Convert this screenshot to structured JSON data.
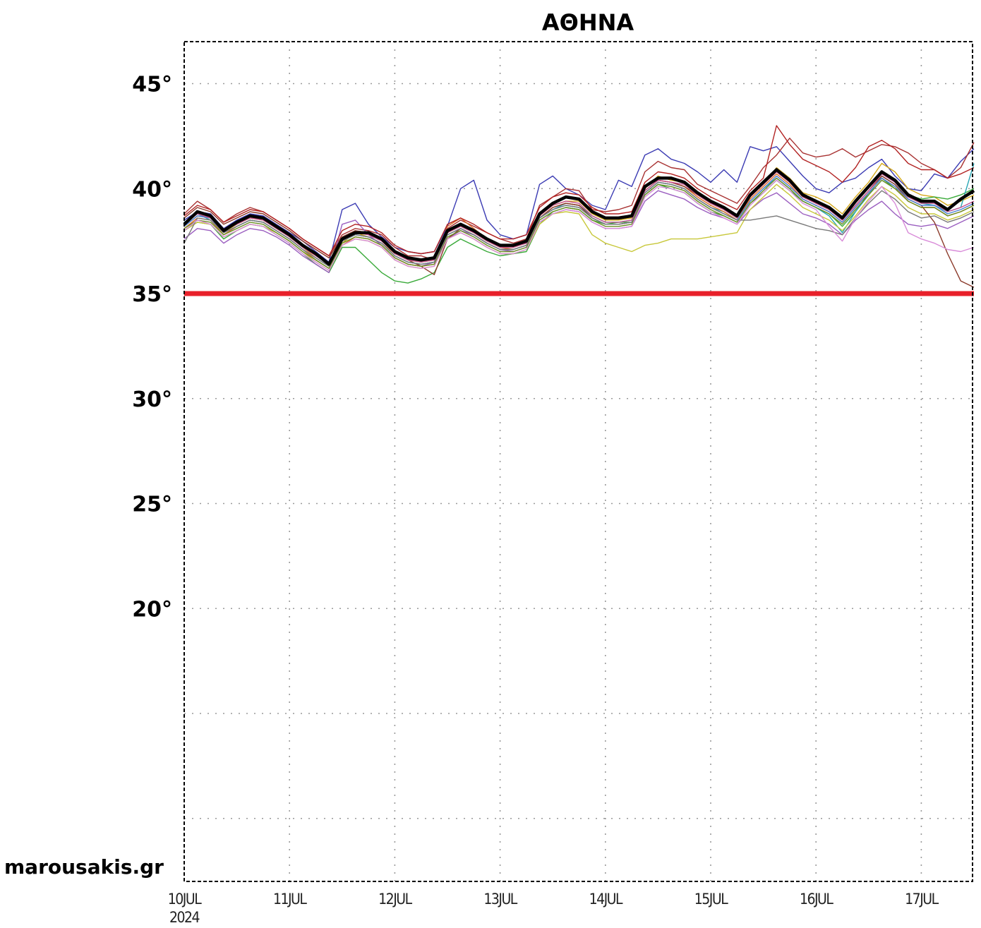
{
  "watermark": "marousakis.gr",
  "chart_data": {
    "type": "line",
    "title": "ΑΘΗΝΑ",
    "xlabel": "",
    "ylabel": "",
    "x_ticks": [
      {
        "label": "10JUL",
        "year": "2024"
      },
      {
        "label": "11JUL"
      },
      {
        "label": "12JUL"
      },
      {
        "label": "13JUL"
      },
      {
        "label": "14JUL"
      },
      {
        "label": "15JUL"
      },
      {
        "label": "16JUL"
      },
      {
        "label": "17JUL"
      }
    ],
    "y_ticks": [
      {
        "label": "45°",
        "value": 45
      },
      {
        "label": "40°",
        "value": 40
      },
      {
        "label": "35°",
        "value": 35
      },
      {
        "label": "30°",
        "value": 30
      },
      {
        "label": "25°",
        "value": 25
      },
      {
        "label": "20°",
        "value": 20
      }
    ],
    "xlim": [
      0,
      7.5
    ],
    "ylim": [
      7,
      47
    ],
    "grid": true,
    "threshold": {
      "value": 35,
      "color": "#e8202a"
    },
    "mean_color": "#000000",
    "x": [
      0,
      0.125,
      0.25,
      0.375,
      0.5,
      0.625,
      0.75,
      0.875,
      1.0,
      1.125,
      1.25,
      1.375,
      1.5,
      1.625,
      1.75,
      1.875,
      2.0,
      2.125,
      2.25,
      2.375,
      2.5,
      2.625,
      2.75,
      2.875,
      3.0,
      3.125,
      3.25,
      3.375,
      3.5,
      3.625,
      3.75,
      3.875,
      4.0,
      4.125,
      4.25,
      4.375,
      4.5,
      4.625,
      4.75,
      4.875,
      5.0,
      5.125,
      5.25,
      5.375,
      5.5,
      5.625,
      5.75,
      5.875,
      6.0,
      6.125,
      6.25,
      6.375,
      6.5,
      6.625,
      6.75,
      6.875,
      7.0,
      7.125,
      7.25,
      7.375,
      7.5
    ],
    "series": [
      {
        "role": "mean",
        "values": [
          38.3,
          38.9,
          38.7,
          38.0,
          38.4,
          38.7,
          38.6,
          38.2,
          37.8,
          37.3,
          36.9,
          36.4,
          37.6,
          37.9,
          37.9,
          37.6,
          37.0,
          36.7,
          36.6,
          36.7,
          38.0,
          38.3,
          38.0,
          37.6,
          37.3,
          37.3,
          37.5,
          38.8,
          39.3,
          39.6,
          39.5,
          38.9,
          38.6,
          38.6,
          38.7,
          40.1,
          40.5,
          40.5,
          40.3,
          39.8,
          39.4,
          39.1,
          38.7,
          39.7,
          40.3,
          40.9,
          40.4,
          39.7,
          39.4,
          39.1,
          38.6,
          39.4,
          40.1,
          40.8,
          40.4,
          39.7,
          39.4,
          39.4,
          39.0,
          39.5,
          39.9
        ]
      },
      {
        "color": "#3b3bb3",
        "values": [
          38.5,
          38.9,
          38.8,
          38.1,
          38.5,
          38.8,
          38.7,
          38.3,
          37.9,
          37.5,
          37.0,
          36.5,
          39.0,
          39.3,
          38.3,
          37.7,
          37.2,
          37.0,
          36.9,
          37.0,
          38.2,
          40.0,
          40.4,
          38.5,
          37.8,
          37.6,
          37.8,
          40.2,
          40.6,
          40.0,
          39.7,
          39.2,
          39.0,
          40.4,
          40.1,
          41.6,
          41.9,
          41.4,
          41.2,
          40.8,
          40.3,
          40.9,
          40.3,
          42.0,
          41.8,
          42.0,
          41.3,
          40.6,
          40.0,
          39.8,
          40.3,
          40.5,
          41.0,
          41.4,
          40.6,
          40.0,
          39.9,
          40.7,
          40.5,
          41.3,
          41.9
        ]
      },
      {
        "color": "#a83232",
        "values": [
          38.8,
          39.4,
          39.0,
          38.4,
          38.8,
          39.1,
          38.9,
          38.5,
          38.1,
          37.6,
          37.2,
          36.8,
          37.8,
          38.1,
          38.0,
          37.8,
          37.2,
          36.8,
          36.8,
          36.6,
          38.1,
          38.5,
          38.2,
          37.9,
          37.6,
          37.4,
          37.6,
          39.2,
          39.6,
          40.0,
          39.9,
          39.0,
          38.9,
          39.0,
          39.2,
          40.8,
          41.3,
          41.0,
          40.9,
          40.2,
          39.9,
          39.6,
          39.3,
          40.1,
          41.0,
          41.6,
          42.4,
          41.7,
          41.5,
          41.6,
          41.9,
          41.5,
          41.8,
          42.1,
          42.0,
          41.7,
          41.2,
          40.9,
          40.5,
          41.0,
          42.2
        ]
      },
      {
        "color": "#d4a81a",
        "values": [
          38.2,
          38.7,
          38.6,
          37.9,
          38.3,
          38.6,
          38.5,
          38.1,
          37.7,
          37.2,
          36.7,
          36.3,
          37.4,
          37.9,
          37.7,
          37.4,
          36.9,
          36.6,
          36.5,
          36.6,
          37.9,
          38.2,
          37.9,
          37.5,
          37.2,
          37.2,
          37.4,
          38.7,
          39.2,
          39.4,
          39.4,
          38.8,
          38.5,
          38.5,
          38.6,
          40.0,
          40.6,
          40.4,
          40.3,
          39.7,
          39.3,
          39.0,
          38.6,
          39.6,
          40.2,
          41.0,
          40.5,
          39.8,
          39.6,
          39.3,
          38.8,
          39.6,
          40.3,
          41.2,
          40.8,
          40.0,
          39.7,
          39.6,
          39.2,
          39.4,
          39.7
        ]
      },
      {
        "color": "#3aaa3a",
        "values": [
          38.0,
          38.4,
          38.3,
          37.6,
          38.0,
          38.3,
          38.2,
          37.8,
          37.4,
          36.9,
          36.4,
          36.0,
          37.2,
          37.2,
          36.6,
          36.0,
          35.6,
          35.5,
          35.7,
          36.0,
          37.2,
          37.6,
          37.3,
          37.0,
          36.8,
          36.9,
          37.0,
          38.3,
          38.9,
          39.1,
          39.0,
          38.5,
          38.3,
          38.4,
          38.4,
          39.7,
          40.2,
          40.0,
          39.8,
          39.3,
          38.9,
          38.7,
          38.4,
          39.3,
          39.8,
          40.4,
          39.9,
          39.4,
          39.1,
          38.8,
          38.2,
          38.9,
          39.8,
          40.5,
          40.0,
          39.7,
          39.5,
          39.6,
          39.5,
          39.7,
          40.0
        ]
      },
      {
        "color": "#9b5fc0",
        "values": [
          37.6,
          38.1,
          38.0,
          37.4,
          37.8,
          38.1,
          38.0,
          37.7,
          37.3,
          36.8,
          36.4,
          36.0,
          38.3,
          38.5,
          37.8,
          37.3,
          36.7,
          36.4,
          36.3,
          36.5,
          37.6,
          38.0,
          37.8,
          37.4,
          37.1,
          37.0,
          37.2,
          38.4,
          38.8,
          39.0,
          38.9,
          38.4,
          38.1,
          38.1,
          38.2,
          39.4,
          39.9,
          39.7,
          39.5,
          39.1,
          38.8,
          38.6,
          38.3,
          39.0,
          39.5,
          39.8,
          39.3,
          38.8,
          38.6,
          38.3,
          37.8,
          38.5,
          39.0,
          39.4,
          38.8,
          38.3,
          38.2,
          38.3,
          38.1,
          38.4,
          38.7
        ]
      },
      {
        "color": "#2aa7b5",
        "values": [
          38.4,
          38.8,
          38.5,
          37.8,
          38.2,
          38.5,
          38.4,
          38.0,
          37.6,
          37.1,
          36.6,
          36.2,
          37.5,
          37.8,
          37.7,
          37.4,
          36.8,
          36.5,
          36.4,
          36.5,
          37.8,
          38.1,
          37.8,
          37.4,
          37.1,
          37.1,
          37.3,
          38.6,
          39.0,
          39.3,
          39.2,
          38.7,
          38.4,
          38.4,
          38.5,
          39.8,
          40.3,
          40.2,
          40.0,
          39.5,
          39.1,
          38.9,
          38.5,
          39.4,
          40.0,
          40.5,
          40.0,
          39.4,
          39.1,
          38.7,
          37.9,
          38.9,
          39.7,
          40.6,
          40.2,
          39.6,
          39.3,
          39.2,
          38.9,
          39.1,
          41.2
        ]
      },
      {
        "color": "#e0702a",
        "values": [
          38.1,
          38.6,
          38.5,
          37.8,
          38.2,
          38.5,
          38.4,
          38.0,
          37.6,
          37.1,
          36.6,
          36.2,
          37.3,
          37.7,
          37.6,
          37.3,
          36.7,
          36.4,
          36.3,
          36.4,
          38.2,
          38.6,
          38.1,
          37.6,
          37.2,
          37.1,
          37.3,
          38.6,
          39.1,
          39.3,
          39.2,
          38.6,
          38.3,
          38.3,
          38.4,
          39.9,
          40.4,
          40.3,
          40.1,
          39.6,
          39.2,
          38.9,
          38.5,
          39.5,
          40.1,
          40.7,
          40.2,
          39.5,
          39.2,
          38.9,
          38.4,
          39.1,
          39.8,
          40.5,
          40.1,
          39.4,
          39.1,
          39.1,
          38.7,
          38.9,
          39.2
        ]
      },
      {
        "color": "#c8c83a",
        "values": [
          38.0,
          38.4,
          38.3,
          37.7,
          38.0,
          38.3,
          38.2,
          37.9,
          37.5,
          37.0,
          36.5,
          36.1,
          37.3,
          37.6,
          37.5,
          37.2,
          36.6,
          36.3,
          36.2,
          36.3,
          37.6,
          37.9,
          37.6,
          37.2,
          36.9,
          36.9,
          37.1,
          38.3,
          38.8,
          38.9,
          38.8,
          37.8,
          37.4,
          37.2,
          37.0,
          37.3,
          37.4,
          37.6,
          37.6,
          37.6,
          37.7,
          37.8,
          37.9,
          39.0,
          39.6,
          40.2,
          39.7,
          39.1,
          38.8,
          38.5,
          38.0,
          38.7,
          39.5,
          40.1,
          39.7,
          39.1,
          38.8,
          38.8,
          38.5,
          38.7,
          39.0
        ]
      },
      {
        "color": "#8b3a2a",
        "values": [
          38.6,
          39.1,
          38.9,
          38.3,
          38.6,
          38.9,
          38.8,
          38.4,
          38.0,
          37.5,
          37.1,
          36.7,
          37.7,
          38.0,
          37.9,
          37.6,
          37.0,
          36.6,
          36.3,
          35.9,
          37.6,
          38.1,
          37.8,
          37.4,
          37.1,
          37.1,
          37.3,
          38.6,
          39.1,
          39.3,
          39.2,
          38.6,
          38.3,
          38.3,
          38.4,
          39.9,
          40.4,
          40.3,
          40.1,
          39.7,
          39.3,
          39.0,
          38.6,
          39.6,
          40.2,
          40.8,
          40.3,
          39.6,
          39.3,
          39.0,
          38.5,
          39.2,
          39.9,
          40.6,
          40.2,
          39.5,
          39.2,
          38.4,
          36.9,
          35.6,
          35.3
        ]
      },
      {
        "color": "#4a7fd4",
        "values": [
          38.2,
          38.7,
          38.6,
          37.9,
          38.2,
          38.5,
          38.4,
          38.0,
          37.6,
          37.1,
          36.7,
          36.3,
          37.5,
          37.8,
          37.7,
          37.4,
          36.8,
          36.5,
          36.4,
          36.5,
          37.8,
          38.1,
          37.8,
          37.4,
          37.1,
          37.1,
          37.3,
          38.6,
          39.0,
          39.2,
          39.1,
          38.6,
          38.3,
          38.3,
          38.4,
          39.8,
          40.3,
          40.2,
          40.0,
          39.5,
          39.1,
          38.8,
          38.5,
          39.4,
          40.0,
          40.6,
          40.1,
          39.5,
          39.2,
          38.9,
          38.4,
          39.1,
          39.8,
          40.5,
          40.1,
          39.5,
          39.2,
          39.2,
          38.8,
          39.0,
          39.3
        ]
      },
      {
        "color": "#c74f8e",
        "values": [
          38.3,
          38.8,
          38.6,
          38.0,
          38.3,
          38.6,
          38.5,
          38.1,
          37.7,
          37.2,
          36.8,
          36.4,
          37.6,
          37.9,
          37.8,
          37.5,
          36.9,
          36.6,
          36.5,
          36.6,
          37.9,
          38.2,
          37.9,
          37.5,
          37.2,
          37.2,
          37.4,
          38.7,
          39.2,
          39.4,
          39.3,
          38.7,
          38.4,
          38.4,
          38.5,
          39.9,
          40.4,
          40.3,
          40.2,
          39.7,
          39.3,
          39.0,
          38.6,
          39.6,
          40.2,
          40.8,
          40.3,
          39.6,
          39.3,
          39.0,
          38.5,
          39.2,
          39.9,
          40.7,
          40.3,
          39.6,
          39.3,
          39.3,
          38.9,
          39.1,
          39.4
        ]
      },
      {
        "color": "#6b8e23",
        "values": [
          38.1,
          38.5,
          38.4,
          37.8,
          38.1,
          38.4,
          38.3,
          37.9,
          37.5,
          37.0,
          36.6,
          36.2,
          37.4,
          37.7,
          37.6,
          37.3,
          36.7,
          36.4,
          36.3,
          36.4,
          37.7,
          38.0,
          37.7,
          37.3,
          37.0,
          37.0,
          37.2,
          38.5,
          38.9,
          39.1,
          39.0,
          38.5,
          38.2,
          38.2,
          38.3,
          39.7,
          40.2,
          40.1,
          39.9,
          39.4,
          39.0,
          38.7,
          38.4,
          39.3,
          39.9,
          40.5,
          40.0,
          39.4,
          39.1,
          38.8,
          38.3,
          39.0,
          39.7,
          40.4,
          40.0,
          39.4,
          39.1,
          39.1,
          38.7,
          38.9,
          39.2
        ]
      },
      {
        "color": "#7a7a7a",
        "values": [
          37.4,
          38.6,
          38.5,
          37.9,
          38.2,
          38.5,
          38.4,
          38.0,
          37.6,
          37.1,
          36.7,
          36.3,
          37.5,
          37.8,
          37.7,
          37.4,
          36.8,
          36.5,
          36.4,
          36.5,
          37.8,
          38.1,
          37.8,
          37.4,
          37.1,
          37.1,
          37.3,
          38.6,
          39.0,
          39.2,
          39.1,
          38.6,
          38.3,
          38.3,
          38.4,
          39.8,
          40.3,
          40.2,
          40.0,
          39.5,
          39.1,
          38.8,
          38.5,
          38.5,
          38.6,
          38.7,
          38.5,
          38.3,
          38.1,
          38.0,
          37.8,
          38.6,
          39.3,
          39.9,
          39.5,
          38.9,
          38.6,
          38.7,
          38.4,
          38.6,
          38.9
        ]
      },
      {
        "color": "#b22222",
        "values": [
          38.7,
          39.2,
          39.0,
          38.4,
          38.7,
          39.0,
          38.9,
          38.5,
          38.1,
          37.6,
          37.2,
          36.8,
          38.0,
          38.3,
          38.2,
          37.9,
          37.3,
          37.0,
          36.9,
          37.0,
          38.3,
          38.6,
          38.3,
          37.9,
          37.6,
          37.6,
          37.8,
          39.1,
          39.6,
          39.8,
          39.7,
          39.1,
          38.8,
          38.8,
          38.9,
          40.3,
          40.8,
          40.7,
          40.5,
          40.0,
          39.6,
          39.3,
          39.0,
          39.9,
          40.5,
          43.0,
          42.1,
          41.4,
          41.1,
          40.8,
          40.3,
          41.0,
          42.0,
          42.3,
          41.9,
          41.2,
          40.9,
          40.9,
          40.5,
          40.7,
          41.0
        ]
      },
      {
        "color": "#d98cd9",
        "values": [
          38.0,
          38.5,
          38.3,
          37.7,
          38.0,
          38.3,
          38.2,
          37.8,
          37.4,
          36.9,
          36.5,
          36.1,
          37.3,
          37.6,
          37.5,
          37.2,
          36.6,
          36.3,
          36.2,
          36.3,
          37.6,
          37.9,
          37.6,
          37.2,
          36.9,
          36.9,
          37.1,
          38.4,
          38.8,
          39.0,
          38.9,
          38.4,
          38.1,
          38.1,
          38.2,
          39.6,
          40.1,
          40.0,
          39.8,
          39.3,
          38.9,
          38.6,
          38.3,
          39.2,
          39.8,
          40.4,
          39.9,
          39.3,
          39.0,
          38.2,
          37.5,
          38.6,
          39.4,
          40.1,
          39.3,
          37.9,
          37.6,
          37.4,
          37.1,
          37.0,
          37.2
        ]
      }
    ]
  }
}
